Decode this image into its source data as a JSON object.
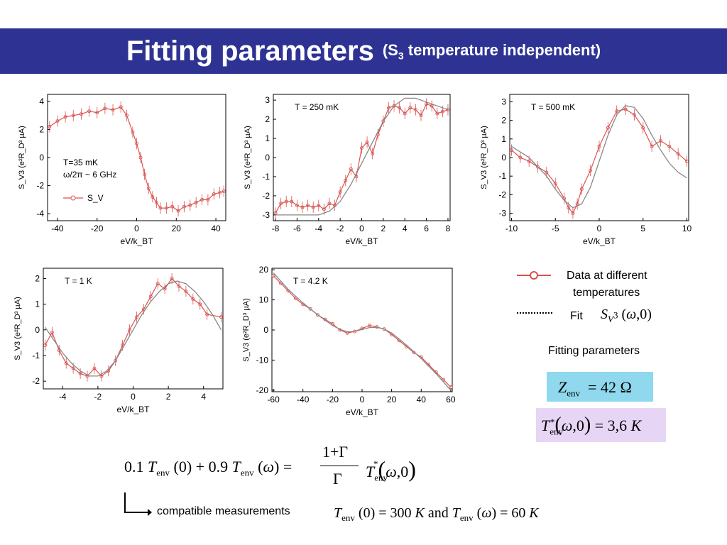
{
  "title": {
    "main": "Fitting parameters",
    "sub_prefix": "(S",
    "sub_index": "3",
    "sub_suffix": " temperature independent)"
  },
  "colors": {
    "banner": "#2e3393",
    "data": "#d9534f",
    "fit": "#888888",
    "box_z": "#8fd8ee",
    "box_t": "#e7d5f5"
  },
  "chart_data": [
    {
      "type": "line",
      "ylabel": "S_V3 (e²R_D³ µA)",
      "xlabel": "eV/k_BT",
      "xlim": [
        -45,
        45
      ],
      "ylim": [
        -4.5,
        4.5
      ],
      "xticks": [
        "-40",
        "-20",
        "0",
        "20",
        "40"
      ],
      "yticks": [
        "-4",
        "-2",
        "0",
        "2",
        "4"
      ],
      "annotations": [
        "T=35 mK",
        "ω/2π ~ 6 GHz"
      ],
      "legend": "S_V",
      "series": [
        {
          "name": "S_V",
          "x": [
            -44,
            -40,
            -36,
            -32,
            -28,
            -24,
            -20,
            -16,
            -12,
            -8,
            -5,
            -2,
            0,
            2,
            4,
            6,
            8,
            10,
            12,
            15,
            18,
            21,
            24,
            27,
            30,
            33,
            36,
            39,
            42,
            44
          ],
          "y": [
            2.2,
            2.6,
            2.9,
            3.0,
            3.1,
            3.3,
            3.2,
            3.5,
            3.4,
            3.6,
            3.0,
            1.8,
            1.0,
            0.0,
            -1.2,
            -2.2,
            -2.8,
            -3.2,
            -3.6,
            -3.6,
            -3.5,
            -3.8,
            -3.5,
            -3.4,
            -3.2,
            -3.0,
            -3.0,
            -2.6,
            -2.5,
            -2.4
          ]
        }
      ]
    },
    {
      "type": "line",
      "ylabel": "S_V3 (e²R_D³ µA)",
      "xlabel": "eV/k_BT",
      "xlim": [
        -8.2,
        8.2
      ],
      "ylim": [
        -3.3,
        3.3
      ],
      "xticks": [
        "-8",
        "-6",
        "-4",
        "-2",
        "0",
        "2",
        "4",
        "6",
        "8"
      ],
      "yticks": [
        "-3",
        "-2",
        "-1",
        "0",
        "1",
        "2",
        "3"
      ],
      "annotations": [
        "T = 250 mK"
      ],
      "series": [
        {
          "name": "data",
          "x": [
            -8,
            -7.5,
            -7,
            -6.5,
            -6,
            -5.5,
            -5,
            -4.5,
            -4,
            -3.5,
            -3,
            -2.5,
            -2,
            -1.5,
            -1,
            -0.5,
            0,
            0.5,
            1,
            1.5,
            2,
            2.5,
            3,
            3.5,
            4,
            4.5,
            5,
            5.5,
            6,
            6.5,
            7,
            7.5,
            8
          ],
          "y": [
            -2.9,
            -2.4,
            -2.3,
            -2.3,
            -2.5,
            -2.6,
            -2.5,
            -2.6,
            -2.5,
            -2.7,
            -2.4,
            -2.5,
            -1.8,
            -1.2,
            -0.6,
            -1.0,
            0.5,
            0.8,
            0.2,
            1.2,
            1.9,
            2.6,
            2.7,
            2.6,
            2.3,
            2.6,
            2.5,
            2.2,
            2.8,
            2.7,
            2.3,
            2.4,
            2.5
          ]
        },
        {
          "name": "fit",
          "x": [
            -8,
            -6,
            -5,
            -4,
            -3,
            -2,
            -1,
            0,
            1,
            2,
            3,
            4,
            5,
            6,
            7,
            8
          ],
          "y": [
            -3.0,
            -3.0,
            -3.0,
            -3.0,
            -2.8,
            -2.3,
            -1.4,
            -0.3,
            0.8,
            1.9,
            2.7,
            3.1,
            3.1,
            2.9,
            2.7,
            2.5
          ]
        }
      ]
    },
    {
      "type": "line",
      "ylabel": "S_V3 (e²R_D³ µA)",
      "xlabel": "eV/k_BT",
      "xlim": [
        -10.2,
        10.2
      ],
      "ylim": [
        -3.4,
        3.4
      ],
      "xticks": [
        "-10",
        "-5",
        "0",
        "5",
        "10"
      ],
      "yticks": [
        "-3",
        "-2",
        "-1",
        "0",
        "1",
        "2",
        "3"
      ],
      "annotations": [
        "T = 500 mK"
      ],
      "series": [
        {
          "name": "data",
          "x": [
            -10,
            -9,
            -8,
            -7,
            -6,
            -5,
            -4,
            -3.5,
            -3,
            -2.5,
            -2,
            -1,
            0,
            1,
            2,
            3,
            4,
            5,
            6,
            7,
            8,
            9,
            10
          ],
          "y": [
            0.4,
            0.0,
            -0.2,
            -0.5,
            -0.8,
            -1.4,
            -2.2,
            -2.7,
            -3.0,
            -2.5,
            -1.7,
            -0.7,
            0.6,
            1.6,
            2.5,
            2.6,
            2.3,
            1.6,
            0.6,
            0.9,
            0.6,
            0.2,
            -0.2
          ]
        },
        {
          "name": "fit",
          "x": [
            -10,
            -8,
            -6,
            -5,
            -4,
            -3,
            -2,
            -1,
            0,
            1,
            2,
            3,
            4,
            5,
            6,
            7,
            8,
            9,
            10
          ],
          "y": [
            0.6,
            0.0,
            -1.0,
            -1.7,
            -2.3,
            -2.7,
            -2.5,
            -1.6,
            -0.2,
            1.2,
            2.3,
            2.8,
            2.7,
            2.1,
            1.2,
            0.4,
            -0.3,
            -0.8,
            -1.1
          ]
        }
      ]
    },
    {
      "type": "line",
      "ylabel": "S_V3 (e²R_D³ µA)",
      "xlabel": "eV/k_BT",
      "xlim": [
        -5.1,
        5.1
      ],
      "ylim": [
        -2.3,
        2.4
      ],
      "xticks": [
        "-4",
        "-2",
        "0",
        "2",
        "4"
      ],
      "yticks": [
        "-2",
        "-1",
        "0",
        "1",
        "2"
      ],
      "annotations": [
        "T = 1 K"
      ],
      "series": [
        {
          "name": "data",
          "x": [
            -5,
            -4.6,
            -4.2,
            -3.8,
            -3.4,
            -3,
            -2.6,
            -2.2,
            -1.8,
            -1.4,
            -1,
            -0.6,
            -0.2,
            0.2,
            0.6,
            1,
            1.4,
            1.8,
            2.2,
            2.6,
            3,
            3.4,
            3.8,
            4.2,
            5
          ],
          "y": [
            -0.6,
            -0.1,
            -0.8,
            -1.3,
            -1.5,
            -1.7,
            -1.8,
            -1.5,
            -1.8,
            -1.6,
            -1.2,
            -0.6,
            0.0,
            0.5,
            0.8,
            1.3,
            1.8,
            1.6,
            2.0,
            1.7,
            1.5,
            1.2,
            1.0,
            0.6,
            0.5
          ]
        },
        {
          "name": "fit",
          "x": [
            -5,
            -4.5,
            -4,
            -3.5,
            -3,
            -2.5,
            -2,
            -1.5,
            -1,
            -0.5,
            0,
            0.5,
            1,
            1.5,
            2,
            2.5,
            3,
            3.5,
            4,
            4.5,
            5
          ],
          "y": [
            0.1,
            -0.4,
            -0.9,
            -1.3,
            -1.6,
            -1.8,
            -1.8,
            -1.6,
            -1.2,
            -0.6,
            0.0,
            0.6,
            1.1,
            1.5,
            1.8,
            1.9,
            1.8,
            1.5,
            1.1,
            0.6,
            0.0
          ]
        }
      ]
    },
    {
      "type": "line",
      "ylabel": "S_V3 (e²R_D³ µA)",
      "xlabel": "eV/k_BT",
      "xlim": [
        -61,
        61
      ],
      "ylim": [
        -20.5,
        20.5
      ],
      "xticks": [
        "-60",
        "-40",
        "-20",
        "0",
        "20",
        "40",
        "60"
      ],
      "yticks": [
        "-20",
        "-10",
        "0",
        "10",
        "20"
      ],
      "annotations": [
        "T = 4.2 K"
      ],
      "series": [
        {
          "name": "data",
          "x": [
            -60,
            -55,
            -50,
            -45,
            -40,
            -35,
            -30,
            -25,
            -20,
            -15,
            -10,
            -5,
            0,
            5,
            10,
            15,
            20,
            25,
            30,
            35,
            40,
            45,
            50,
            55,
            60
          ],
          "y": [
            18,
            15.5,
            13,
            10.5,
            8.5,
            7,
            5,
            3.5,
            2,
            0,
            -1,
            -0.5,
            0.5,
            1.5,
            1,
            0.3,
            -1.5,
            -3.5,
            -5.5,
            -7.5,
            -9,
            -11.5,
            -14,
            -16.5,
            -19
          ]
        },
        {
          "name": "fit",
          "x": [
            -60,
            -50,
            -40,
            -30,
            -20,
            -15,
            -10,
            -5,
            0,
            5,
            10,
            15,
            20,
            30,
            40,
            50,
            60
          ],
          "y": [
            19,
            13.5,
            9,
            5,
            1.5,
            0.2,
            -0.6,
            -0.5,
            0.2,
            0.8,
            0.9,
            0.3,
            -1,
            -5,
            -9.5,
            -14.5,
            -20
          ]
        }
      ]
    }
  ],
  "legend": {
    "data_line1": "Data at different",
    "data_line2": "temperatures",
    "fit_label": "Fit",
    "fit_formula": "S_V³ (ω,0)",
    "fitting_params_label": "Fitting parameters"
  },
  "params": {
    "z_env": "Z_env = 42 Ω",
    "t_env": "T*_env(ω,0) = 3,6 K"
  },
  "equation": {
    "lhs": "0.1 T_env (0) + 0.9 T_env (ω) =",
    "numerator": "1+Γ",
    "denominator": "Γ",
    "rhs": "T*_env (ω,0)"
  },
  "compat": {
    "label": "compatible measurements",
    "formula": "T_env (0) = 300 K and T_env (ω) = 60 K"
  }
}
